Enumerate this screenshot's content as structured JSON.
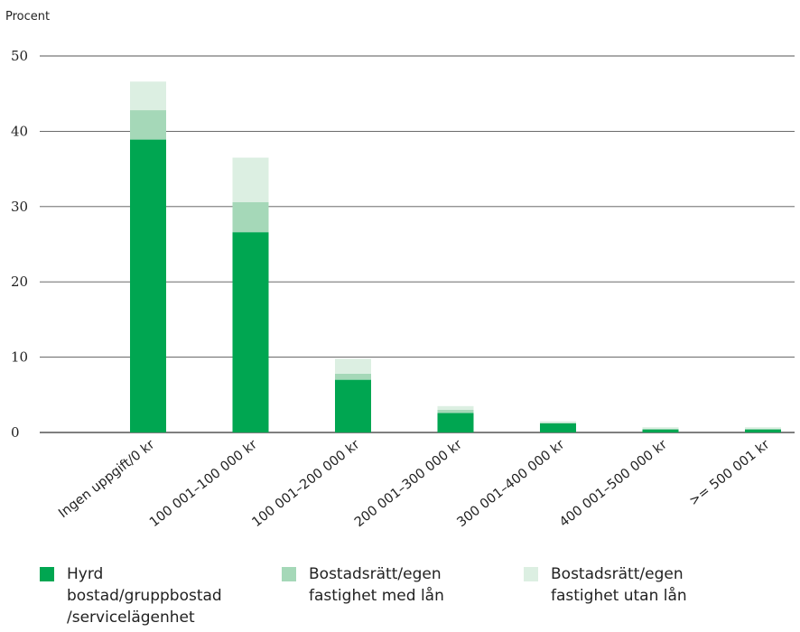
{
  "chart_data": {
    "type": "bar",
    "stacked": true,
    "ylabel": "Procent",
    "ylim": [
      0,
      50
    ],
    "yticks": [
      0,
      10,
      20,
      30,
      40,
      50
    ],
    "grid": true,
    "legend_position": "bottom",
    "categories": [
      "Ingen uppgift/0 kr",
      "100 001–100 000 kr",
      "100 001–200 000 kr",
      "200 001–300 000 kr",
      "300 001–400 000 kr",
      "400 001–500 000 kr",
      ">= 500 001 kr"
    ],
    "series": [
      {
        "name": "Hyrd bostad/gruppbostad /servicelägenhet",
        "color": "#00a651",
        "values": [
          38.9,
          26.6,
          7.0,
          2.6,
          1.2,
          0.4,
          0.4
        ]
      },
      {
        "name": "Bostadsrätt/egen fastighet med lån",
        "color": "#a5d8b8",
        "values": [
          3.9,
          4.0,
          0.8,
          0.4,
          0.1,
          0.1,
          0.1
        ]
      },
      {
        "name": "Bostadsrätt/egen fastighet utan lån",
        "color": "#dcefe2",
        "values": [
          3.8,
          5.9,
          2.0,
          0.5,
          0.2,
          0.2,
          0.2
        ]
      }
    ]
  }
}
